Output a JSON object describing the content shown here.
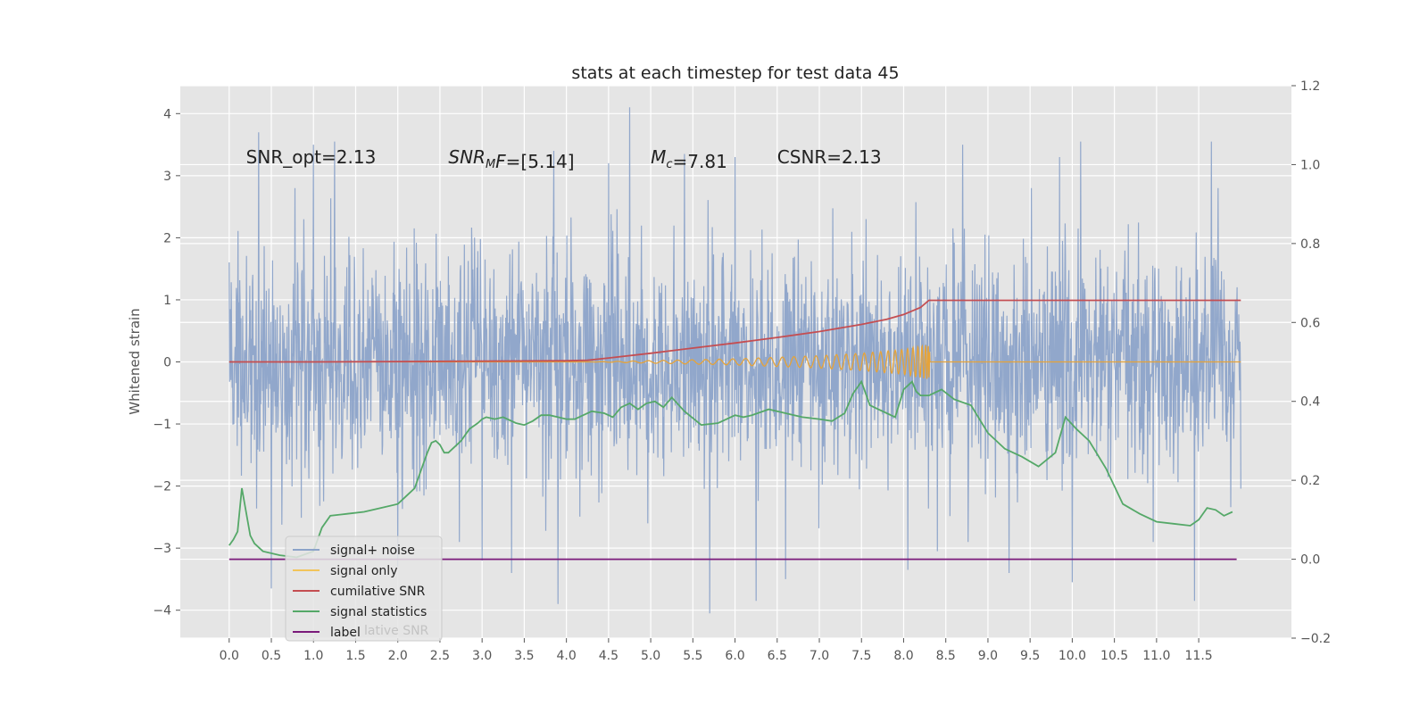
{
  "chart_data": {
    "type": "line",
    "title": "stats at each timestep for test data 45",
    "ylabel": "Whitened strain",
    "xlim": [
      -0.58,
      12.6
    ],
    "ylim": [
      -4.45,
      4.45
    ],
    "y2lim": [
      -0.2,
      1.2
    ],
    "grid": true,
    "legend_position": "lower-left",
    "x_ticks": [
      0.0,
      0.5,
      1.0,
      1.5,
      2.0,
      2.5,
      3.0,
      3.5,
      4.0,
      4.5,
      5.0,
      5.5,
      6.0,
      6.5,
      7.0,
      7.5,
      8.0,
      8.5,
      9.0,
      9.5,
      10.0,
      10.5,
      11.0,
      11.5
    ],
    "x_tick_labels": [
      "0.0",
      "0.5",
      "1.0",
      "1.5",
      "2.0",
      "2.5",
      "3.0",
      "3.5",
      "4.0",
      "4.5",
      "5.0",
      "5.5",
      "6.0",
      "6.5",
      "7.0",
      "7.5",
      "8.0",
      "8.5",
      "9.0",
      "9.5",
      "10.0",
      "10.5",
      "11.0",
      "11.5"
    ],
    "y_ticks": [
      4,
      3,
      2,
      1,
      0,
      -1,
      -2,
      -3,
      -4
    ],
    "y_tick_labels": [
      "4",
      "3",
      "2",
      "1",
      "0",
      "−1",
      "−2",
      "−3",
      "−4"
    ],
    "y2_ticks": [
      1.2,
      1.0,
      0.8,
      0.6,
      0.4,
      0.2,
      0.0,
      -0.2
    ],
    "y2_tick_labels": [
      "1.2",
      "1.0",
      "0.8",
      "0.6",
      "0.4",
      "0.2",
      "0.0",
      "−0.2"
    ],
    "annotations": [
      {
        "parts": [
          {
            "text": "SNR_opt=2.13",
            "italic": false
          }
        ],
        "x": 0.2,
        "y": 3.3
      },
      {
        "parts": [
          {
            "text": "SNR",
            "italic": true
          },
          {
            "text": "M",
            "italic": true,
            "sub": true
          },
          {
            "text": "F",
            "italic": true
          },
          {
            "text": "=[5.14]",
            "italic": false
          }
        ],
        "x": 2.6,
        "y": 3.3
      },
      {
        "parts": [
          {
            "text": "M",
            "italic": true
          },
          {
            "text": "c",
            "italic": true,
            "sub": true
          },
          {
            "text": "=7.81",
            "italic": false
          }
        ],
        "x": 5.0,
        "y": 3.3
      },
      {
        "parts": [
          {
            "text": "CSNR=2.13",
            "italic": false
          }
        ],
        "x": 6.5,
        "y": 3.3
      }
    ],
    "legend": [
      {
        "label": "signal+ noise",
        "color": "#8ca3c9"
      },
      {
        "label": "signal only",
        "color": "#f2c45a"
      },
      {
        "label": "cumilative SNR",
        "color": "#c44e52"
      },
      {
        "label": "signal statistics",
        "color": "#55a868"
      },
      {
        "label": "label",
        "color": "#7a1a7a"
      }
    ],
    "legend_ghost_text": "lative SNR",
    "series": [
      {
        "name": "signal+ noise",
        "axis": "left",
        "color": "#8ca3c9",
        "x_range": [
          0.0,
          12.0
        ],
        "y_envelope": [
          -3.5,
          4.1
        ],
        "spikes": [
          [
            0.35,
            3.7
          ],
          [
            0.5,
            -3.65
          ],
          [
            1.0,
            3.5
          ],
          [
            1.25,
            3.55
          ],
          [
            2.0,
            -3.3
          ],
          [
            3.0,
            -3.2
          ],
          [
            3.35,
            -3.4
          ],
          [
            3.85,
            3.4
          ],
          [
            3.9,
            -3.9
          ],
          [
            4.5,
            3.2
          ],
          [
            4.75,
            4.1
          ],
          [
            5.4,
            3.35
          ],
          [
            5.7,
            -4.05
          ],
          [
            6.0,
            3.3
          ],
          [
            6.25,
            -3.85
          ],
          [
            6.6,
            -3.5
          ],
          [
            8.05,
            -3.35
          ],
          [
            8.4,
            -3.05
          ],
          [
            8.7,
            3.5
          ],
          [
            9.25,
            -3.4
          ],
          [
            9.85,
            3.3
          ],
          [
            10.0,
            -3.55
          ],
          [
            10.1,
            3.55
          ],
          [
            11.45,
            -3.85
          ],
          [
            11.65,
            3.55
          ]
        ]
      },
      {
        "name": "signal only",
        "axis": "left",
        "color": "#e5a33a",
        "x": [
          0.0,
          4.3,
          5.0,
          6.0,
          7.0,
          7.5,
          8.0,
          8.3,
          8.32,
          12.0
        ],
        "amplitude": [
          0.0,
          0.0,
          0.02,
          0.05,
          0.1,
          0.14,
          0.2,
          0.28,
          0.0,
          0.0
        ]
      },
      {
        "name": "cumilative SNR",
        "axis": "right",
        "color": "#c44e52",
        "x": [
          0.0,
          1.0,
          2.0,
          3.0,
          4.0,
          4.25,
          4.5,
          5.0,
          5.5,
          6.0,
          6.5,
          7.0,
          7.5,
          7.8,
          8.0,
          8.2,
          8.3,
          12.0
        ],
        "values": [
          0.5,
          0.5,
          0.501,
          0.502,
          0.503,
          0.504,
          0.51,
          0.522,
          0.535,
          0.548,
          0.562,
          0.577,
          0.595,
          0.608,
          0.62,
          0.638,
          0.656,
          0.656
        ]
      },
      {
        "name": "signal statistics",
        "axis": "right",
        "color": "#55a868",
        "x": [
          0.0,
          0.05,
          0.1,
          0.15,
          0.2,
          0.25,
          0.3,
          0.4,
          0.6,
          0.8,
          1.0,
          1.1,
          1.2,
          1.4,
          1.6,
          1.8,
          2.0,
          2.1,
          2.2,
          2.3,
          2.35,
          2.4,
          2.45,
          2.5,
          2.55,
          2.6,
          2.75,
          2.85,
          2.95,
          3.0,
          3.05,
          3.15,
          3.25,
          3.4,
          3.5,
          3.6,
          3.7,
          3.8,
          3.9,
          4.0,
          4.1,
          4.2,
          4.3,
          4.45,
          4.55,
          4.65,
          4.75,
          4.85,
          4.95,
          5.05,
          5.15,
          5.25,
          5.4,
          5.6,
          5.8,
          6.0,
          6.1,
          6.2,
          6.4,
          6.6,
          6.8,
          7.0,
          7.15,
          7.3,
          7.4,
          7.5,
          7.6,
          7.7,
          7.8,
          7.9,
          8.0,
          8.1,
          8.15,
          8.2,
          8.3,
          8.45,
          8.6,
          8.8,
          9.0,
          9.2,
          9.4,
          9.6,
          9.8,
          9.92,
          10.05,
          10.2,
          10.4,
          10.6,
          10.8,
          11.0,
          11.2,
          11.4,
          11.5,
          11.6,
          11.7,
          11.8,
          11.9
        ],
        "values": [
          0.035,
          0.05,
          0.07,
          0.18,
          0.12,
          0.06,
          0.04,
          0.02,
          0.01,
          0.005,
          0.02,
          0.08,
          0.11,
          0.115,
          0.12,
          0.13,
          0.14,
          0.16,
          0.18,
          0.24,
          0.27,
          0.295,
          0.3,
          0.29,
          0.27,
          0.27,
          0.3,
          0.33,
          0.345,
          0.355,
          0.36,
          0.355,
          0.36,
          0.345,
          0.34,
          0.35,
          0.365,
          0.365,
          0.36,
          0.355,
          0.355,
          0.365,
          0.375,
          0.37,
          0.36,
          0.385,
          0.395,
          0.38,
          0.395,
          0.4,
          0.385,
          0.41,
          0.375,
          0.34,
          0.345,
          0.365,
          0.36,
          0.365,
          0.38,
          0.37,
          0.36,
          0.355,
          0.35,
          0.37,
          0.42,
          0.45,
          0.39,
          0.38,
          0.37,
          0.36,
          0.43,
          0.45,
          0.425,
          0.415,
          0.415,
          0.43,
          0.405,
          0.39,
          0.32,
          0.28,
          0.26,
          0.235,
          0.27,
          0.36,
          0.33,
          0.3,
          0.23,
          0.14,
          0.115,
          0.095,
          0.09,
          0.085,
          0.1,
          0.13,
          0.125,
          0.11,
          0.12
        ]
      },
      {
        "name": "label",
        "axis": "right",
        "color": "#7a1a7a",
        "x": [
          0.0,
          11.95
        ],
        "values": [
          0.0,
          0.0
        ]
      }
    ]
  }
}
